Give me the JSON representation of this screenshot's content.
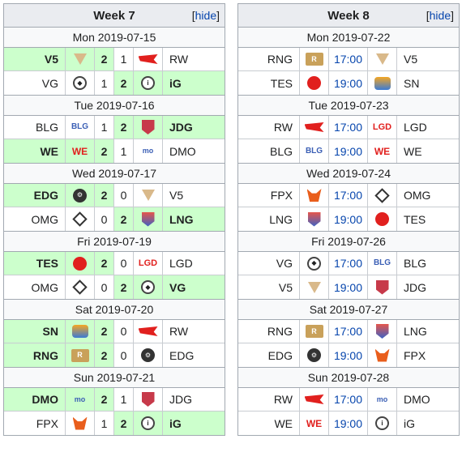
{
  "weeks": [
    {
      "title": "Week 7",
      "hide_label": "hide",
      "layout": "scores",
      "days": [
        {
          "date": "Mon 2019-07-15",
          "matches": [
            {
              "team1": "V5",
              "logo1": "v5",
              "s1": "2",
              "s2": "1",
              "team2": "RW",
              "logo2": "rw",
              "winner": 1
            },
            {
              "team1": "VG",
              "logo1": "vg",
              "s1": "1",
              "s2": "2",
              "team2": "iG",
              "logo2": "ig",
              "winner": 2
            }
          ]
        },
        {
          "date": "Tue 2019-07-16",
          "matches": [
            {
              "team1": "BLG",
              "logo1": "blg",
              "s1": "1",
              "s2": "2",
              "team2": "JDG",
              "logo2": "jdg",
              "winner": 2
            },
            {
              "team1": "WE",
              "logo1": "we",
              "s1": "2",
              "s2": "1",
              "team2": "DMO",
              "logo2": "dmo",
              "winner": 1
            }
          ]
        },
        {
          "date": "Wed 2019-07-17",
          "matches": [
            {
              "team1": "EDG",
              "logo1": "edg",
              "s1": "2",
              "s2": "0",
              "team2": "V5",
              "logo2": "v5",
              "winner": 1
            },
            {
              "team1": "OMG",
              "logo1": "omg",
              "s1": "0",
              "s2": "2",
              "team2": "LNG",
              "logo2": "lng",
              "winner": 2
            }
          ]
        },
        {
          "date": "Fri 2019-07-19",
          "matches": [
            {
              "team1": "TES",
              "logo1": "tes",
              "s1": "2",
              "s2": "0",
              "team2": "LGD",
              "logo2": "lgd",
              "winner": 1
            },
            {
              "team1": "OMG",
              "logo1": "omg",
              "s1": "0",
              "s2": "2",
              "team2": "VG",
              "logo2": "vg",
              "winner": 2
            }
          ]
        },
        {
          "date": "Sat 2019-07-20",
          "matches": [
            {
              "team1": "SN",
              "logo1": "sn",
              "s1": "2",
              "s2": "0",
              "team2": "RW",
              "logo2": "rw",
              "winner": 1
            },
            {
              "team1": "RNG",
              "logo1": "rng",
              "s1": "2",
              "s2": "0",
              "team2": "EDG",
              "logo2": "edg",
              "winner": 1
            }
          ]
        },
        {
          "date": "Sun 2019-07-21",
          "matches": [
            {
              "team1": "DMO",
              "logo1": "dmo",
              "s1": "2",
              "s2": "1",
              "team2": "JDG",
              "logo2": "jdg",
              "winner": 1
            },
            {
              "team1": "FPX",
              "logo1": "fpx",
              "s1": "1",
              "s2": "2",
              "team2": "iG",
              "logo2": "ig",
              "winner": 2
            }
          ]
        }
      ]
    },
    {
      "title": "Week 8",
      "hide_label": "hide",
      "layout": "times",
      "days": [
        {
          "date": "Mon 2019-07-22",
          "matches": [
            {
              "team1": "RNG",
              "logo1": "rng",
              "time": "17:00",
              "team2": "V5",
              "logo2": "v5"
            },
            {
              "team1": "TES",
              "logo1": "tes",
              "time": "19:00",
              "team2": "SN",
              "logo2": "sn"
            }
          ]
        },
        {
          "date": "Tue 2019-07-23",
          "matches": [
            {
              "team1": "RW",
              "logo1": "rw",
              "time": "17:00",
              "team2": "LGD",
              "logo2": "lgd"
            },
            {
              "team1": "BLG",
              "logo1": "blg",
              "time": "19:00",
              "team2": "WE",
              "logo2": "we"
            }
          ]
        },
        {
          "date": "Wed 2019-07-24",
          "matches": [
            {
              "team1": "FPX",
              "logo1": "fpx",
              "time": "17:00",
              "team2": "OMG",
              "logo2": "omg"
            },
            {
              "team1": "LNG",
              "logo1": "lng",
              "time": "19:00",
              "team2": "TES",
              "logo2": "tes"
            }
          ]
        },
        {
          "date": "Fri 2019-07-26",
          "matches": [
            {
              "team1": "VG",
              "logo1": "vg",
              "time": "17:00",
              "team2": "BLG",
              "logo2": "blg"
            },
            {
              "team1": "V5",
              "logo1": "v5",
              "time": "19:00",
              "team2": "JDG",
              "logo2": "jdg"
            }
          ]
        },
        {
          "date": "Sat 2019-07-27",
          "matches": [
            {
              "team1": "RNG",
              "logo1": "rng",
              "time": "17:00",
              "team2": "LNG",
              "logo2": "lng"
            },
            {
              "team1": "EDG",
              "logo1": "edg",
              "time": "19:00",
              "team2": "FPX",
              "logo2": "fpx"
            }
          ]
        },
        {
          "date": "Sun 2019-07-28",
          "matches": [
            {
              "team1": "RW",
              "logo1": "rw",
              "time": "17:00",
              "team2": "DMO",
              "logo2": "dmo"
            },
            {
              "team1": "WE",
              "logo1": "we",
              "time": "19:00",
              "team2": "iG",
              "logo2": "ig"
            }
          ]
        }
      ]
    }
  ],
  "colors": {
    "win_bg": "#ccffcc",
    "header_bg": "#eaecf0",
    "border": "#a2a9b1",
    "link": "#0645ad"
  }
}
